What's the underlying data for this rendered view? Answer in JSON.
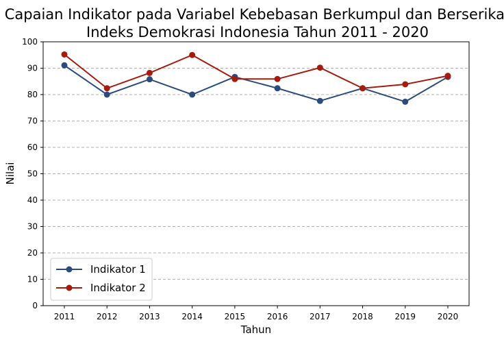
{
  "chart_data": {
    "type": "line",
    "title": [
      "Capaian Indikator pada Variabel Kebebasan Berkumpul dan Berserikat",
      "Indeks Demokrasi Indonesia Tahun 2011 - 2020"
    ],
    "xlabel": "Tahun",
    "ylabel": "Nilai",
    "x": [
      2011,
      2012,
      2013,
      2014,
      2015,
      2016,
      2017,
      2018,
      2019,
      2020
    ],
    "ylim": [
      0,
      100
    ],
    "yticks": [
      0,
      10,
      20,
      30,
      40,
      50,
      60,
      70,
      80,
      90,
      100
    ],
    "grid": "horizontal-dashed",
    "legend": "lower-left",
    "series": [
      {
        "name": "Indikator 1",
        "color": "#2a4b7c",
        "values": [
          91.1,
          80.0,
          85.8,
          80.0,
          86.7,
          82.4,
          77.6,
          82.4,
          77.3,
          86.7
        ]
      },
      {
        "name": "Indikator 2",
        "color": "#a51c0e",
        "values": [
          95.2,
          82.4,
          88.2,
          95.0,
          85.9,
          85.9,
          90.2,
          82.4,
          83.9,
          87.1
        ]
      }
    ]
  }
}
